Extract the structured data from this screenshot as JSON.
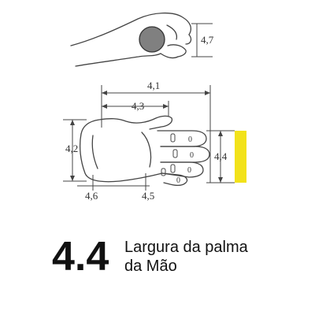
{
  "diagram": {
    "top_view": {
      "dim_label": "4,7"
    },
    "palm_view": {
      "dims": {
        "overall_length": "4,1",
        "palm_length": "4,3",
        "hand_height": "4,2",
        "wrist_offset": "4,6",
        "wrist_width": "4,5",
        "palm_width": "4,4"
      },
      "finger_marks": [
        "0",
        "0",
        "0",
        "0"
      ]
    },
    "highlight_color": "#f2e21a"
  },
  "caption": {
    "code": "4.4",
    "title_line1": "Largura da palma",
    "title_line2": "da Mão"
  }
}
